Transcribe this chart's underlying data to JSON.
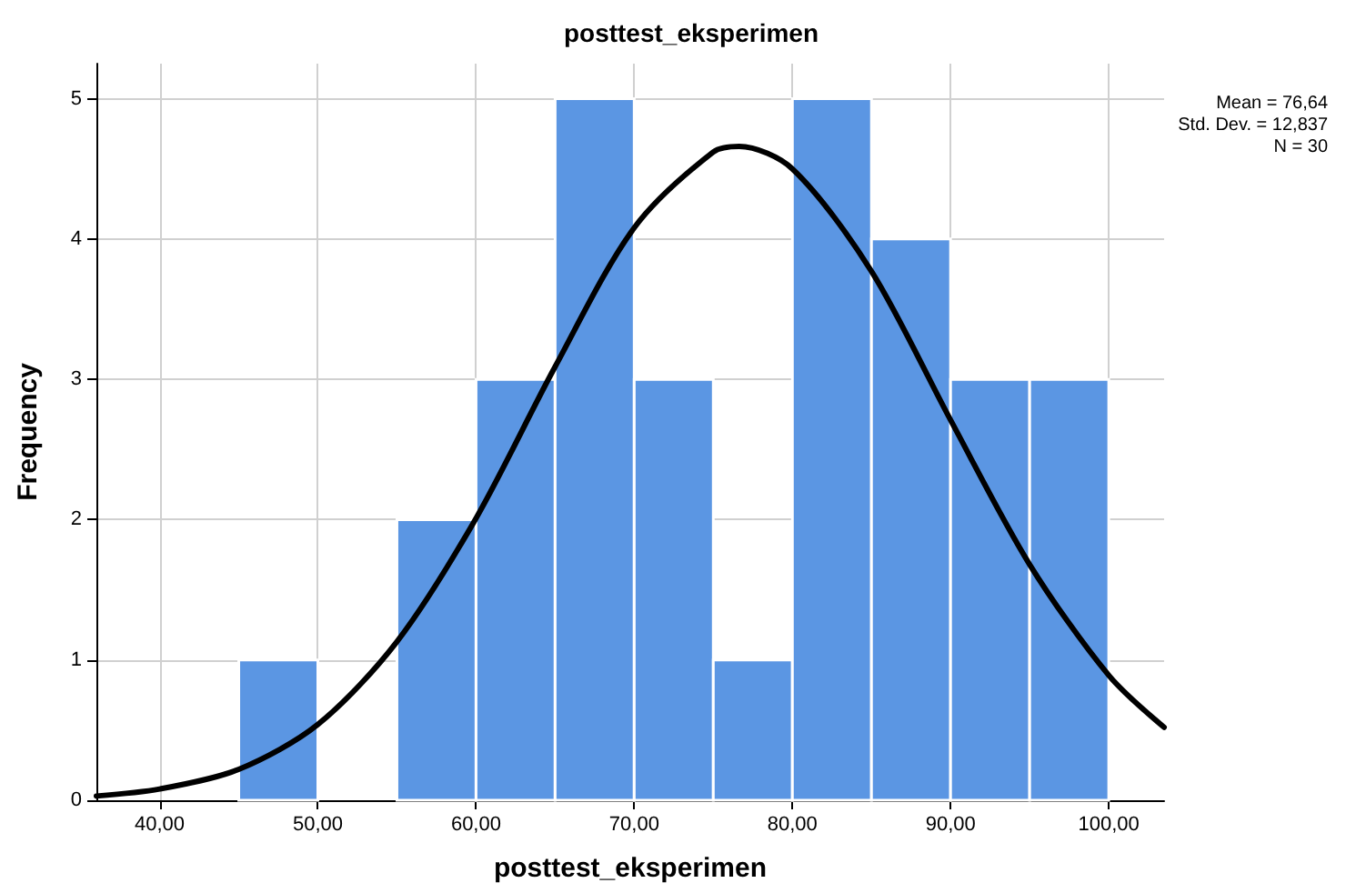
{
  "chart_data": {
    "type": "histogram",
    "title": "posttest_eksperimen",
    "xlabel": "posttest_eksperimen",
    "ylabel": "Frequency",
    "bins": [
      45,
      50,
      55,
      60,
      65,
      70,
      75,
      80,
      85,
      90,
      95,
      100
    ],
    "values": [
      1,
      0,
      2,
      3,
      5,
      3,
      1,
      5,
      4,
      3,
      3
    ],
    "color": "#5b96e3",
    "series": [
      {
        "type": "line",
        "color": "#000000",
        "x": [
          36,
          40,
          45,
          50,
          55,
          60,
          65,
          70,
          75,
          76.64,
          80,
          85,
          90,
          95,
          100,
          103.5
        ],
        "values": [
          0.03,
          0.08,
          0.22,
          0.54,
          1.13,
          2.01,
          3.09,
          4.08,
          4.62,
          4.66,
          4.5,
          3.77,
          2.71,
          1.68,
          0.89,
          0.52
        ]
      }
    ],
    "marker": "none",
    "xlim": [
      36,
      103.5
    ],
    "xticks": [
      {
        "value": 40,
        "label": "40,00"
      },
      {
        "value": 50,
        "label": "50,00"
      },
      {
        "value": 60,
        "label": "60,00"
      },
      {
        "value": 70,
        "label": "70,00"
      },
      {
        "value": 80,
        "label": "80,00"
      },
      {
        "value": 90,
        "label": "90,00"
      },
      {
        "value": 100,
        "label": "100,00"
      }
    ],
    "ylim": [
      0,
      5.25
    ],
    "yticks": [
      0,
      1,
      2,
      3,
      4,
      5
    ],
    "grid": true,
    "annotations": [
      "Mean = 76,64",
      "Std. Dev. = 12,837",
      "N = 30"
    ]
  }
}
